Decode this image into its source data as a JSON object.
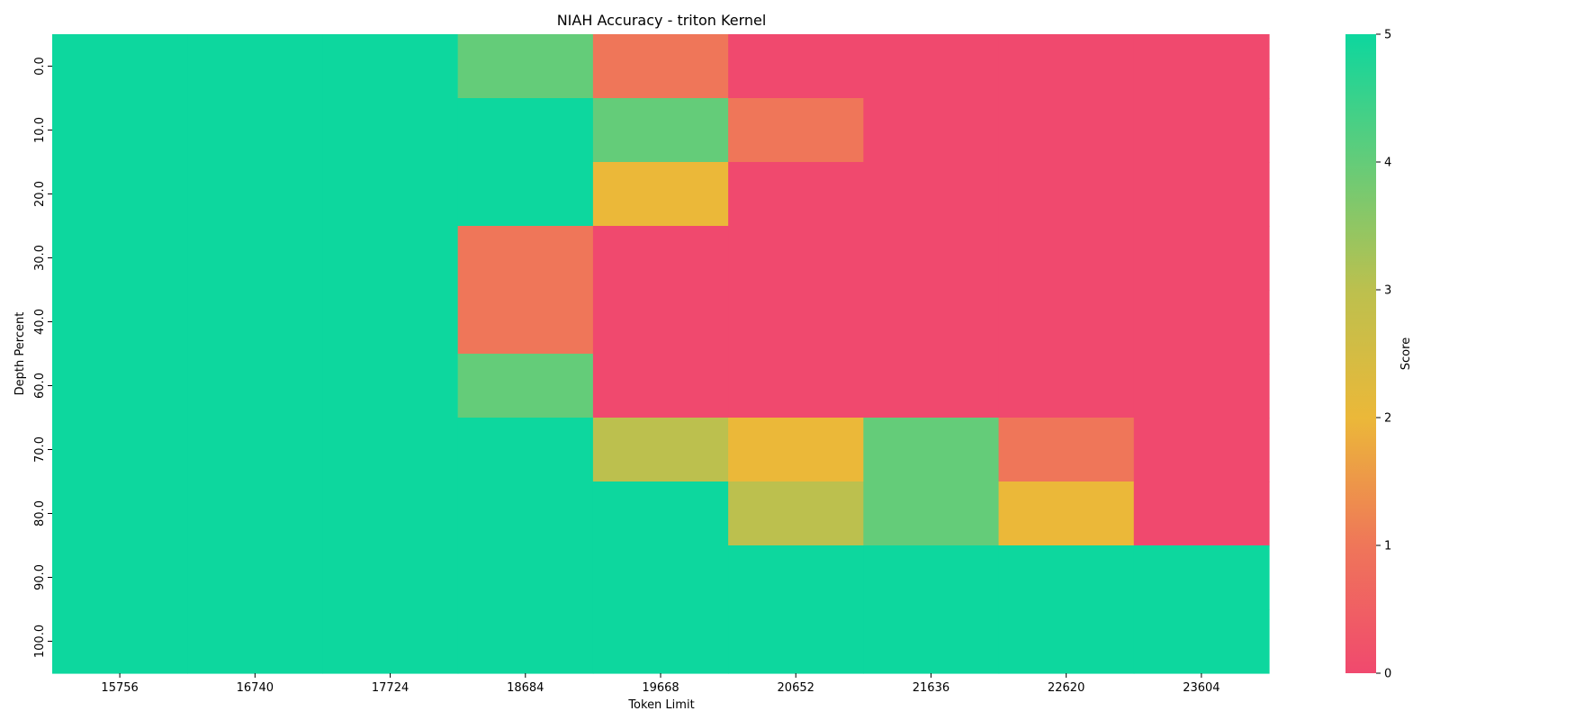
{
  "chart_data": {
    "type": "heatmap",
    "title": "NIAH Accuracy - triton Kernel",
    "xlabel": "Token Limit",
    "ylabel": "Depth Percent",
    "x_categories": [
      "15756",
      "16740",
      "17724",
      "18684",
      "19668",
      "20652",
      "21636",
      "22620",
      "23604"
    ],
    "y_categories": [
      "0.0",
      "10.0",
      "20.0",
      "30.0",
      "40.0",
      "60.0",
      "70.0",
      "80.0",
      "90.0",
      "100.0"
    ],
    "values": [
      [
        5,
        5,
        5,
        4,
        1,
        0,
        0,
        0,
        0
      ],
      [
        5,
        5,
        5,
        5,
        4,
        1,
        0,
        0,
        0
      ],
      [
        5,
        5,
        5,
        5,
        2,
        0,
        0,
        0,
        0
      ],
      [
        5,
        5,
        5,
        1,
        0,
        0,
        0,
        0,
        0
      ],
      [
        5,
        5,
        5,
        1,
        0,
        0,
        0,
        0,
        0
      ],
      [
        5,
        5,
        5,
        4,
        0,
        0,
        0,
        0,
        0
      ],
      [
        5,
        5,
        5,
        5,
        3,
        2,
        4,
        1,
        0
      ],
      [
        5,
        5,
        5,
        5,
        5,
        3,
        4,
        2,
        0
      ],
      [
        5,
        5,
        5,
        5,
        5,
        5,
        5,
        5,
        5
      ],
      [
        5,
        5,
        5,
        5,
        5,
        5,
        5,
        5,
        5
      ]
    ],
    "vmin": 0,
    "vmax": 5,
    "colorbar": {
      "label": "Score",
      "ticks": [
        "0",
        "1",
        "2",
        "3",
        "4",
        "5"
      ],
      "colors": [
        "#F0496E",
        "#EF7659",
        "#EBB839",
        "#BCC04E",
        "#64CC79",
        "#0DD79E"
      ]
    },
    "grid": false,
    "legend": "colorbar-right"
  }
}
